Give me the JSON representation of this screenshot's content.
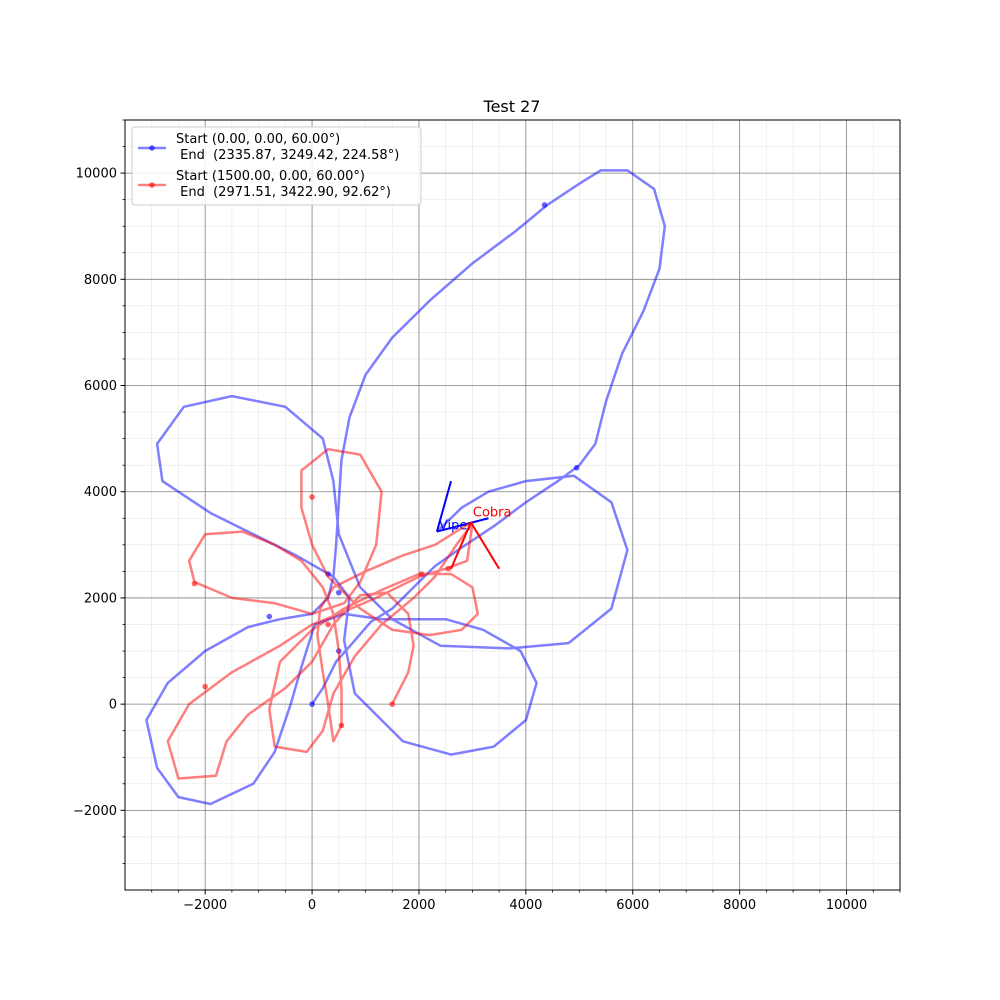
{
  "chart_data": {
    "type": "line",
    "title": "Test 27",
    "xlabel": "",
    "ylabel": "",
    "xlim": [
      -3500,
      11000
    ],
    "ylim": [
      -3500,
      11000
    ],
    "grid": {
      "major": true,
      "minor": true
    },
    "legend_position": "top-left",
    "x_ticks": [
      -2000,
      0,
      2000,
      4000,
      6000,
      8000,
      10000
    ],
    "y_ticks": [
      -2000,
      0,
      2000,
      4000,
      6000,
      8000,
      10000
    ],
    "x_tick_labels": [
      "−2000",
      "0",
      "2000",
      "4000",
      "6000",
      "8000",
      "10000"
    ],
    "y_tick_labels": [
      "−2000",
      "0",
      "2000",
      "4000",
      "6000",
      "8000",
      "10000"
    ],
    "series": [
      {
        "legend_line1": "Start (0.00, 0.00, 60.00°)",
        "legend_line2": " End  (2335.87, 3249.42, 224.58°)",
        "color": "#0000ff",
        "path": [
          [
            0,
            0
          ],
          [
            200,
            300
          ],
          [
            450,
            800
          ],
          [
            800,
            1200
          ],
          [
            1100,
            1550
          ],
          [
            1500,
            1800
          ],
          [
            1900,
            2200
          ],
          [
            2300,
            2600
          ],
          [
            2800,
            2950
          ],
          [
            3400,
            3350
          ],
          [
            4000,
            3800
          ],
          [
            4600,
            4200
          ],
          [
            5000,
            4500
          ],
          [
            5300,
            4900
          ],
          [
            5500,
            5700
          ],
          [
            5800,
            6600
          ],
          [
            6200,
            7400
          ],
          [
            6500,
            8200
          ],
          [
            6600,
            9000
          ],
          [
            6400,
            9700
          ],
          [
            5900,
            10050
          ],
          [
            5400,
            10050
          ],
          [
            5000,
            9800
          ],
          [
            4400,
            9400
          ],
          [
            3800,
            8900
          ],
          [
            3000,
            8300
          ],
          [
            2200,
            7600
          ],
          [
            1500,
            6900
          ],
          [
            1000,
            6200
          ],
          [
            700,
            5400
          ],
          [
            550,
            4600
          ],
          [
            500,
            3800
          ],
          [
            450,
            3000
          ],
          [
            400,
            2400
          ],
          [
            300,
            2000
          ],
          [
            0,
            1700
          ],
          [
            -600,
            1600
          ],
          [
            -1200,
            1450
          ],
          [
            -2000,
            1000
          ],
          [
            -2700,
            400
          ],
          [
            -3100,
            -300
          ],
          [
            -2900,
            -1200
          ],
          [
            -2500,
            -1750
          ],
          [
            -1900,
            -1880
          ],
          [
            -1100,
            -1500
          ],
          [
            -700,
            -900
          ],
          [
            -400,
            0
          ],
          [
            -200,
            700
          ],
          [
            50,
            1500
          ],
          [
            600,
            1700
          ],
          [
            1300,
            1600
          ],
          [
            2100,
            1600
          ],
          [
            2500,
            1600
          ],
          [
            3200,
            1400
          ],
          [
            3900,
            1000
          ],
          [
            4200,
            400
          ],
          [
            4000,
            -300
          ],
          [
            3400,
            -800
          ],
          [
            2600,
            -950
          ],
          [
            1700,
            -700
          ],
          [
            800,
            200
          ],
          [
            600,
            1200
          ],
          [
            700,
            2000
          ],
          [
            400,
            2400
          ],
          [
            -300,
            2800
          ],
          [
            -1100,
            3200
          ],
          [
            -1900,
            3600
          ],
          [
            -2800,
            4200
          ],
          [
            -2900,
            4900
          ],
          [
            -2400,
            5600
          ],
          [
            -1500,
            5800
          ],
          [
            -500,
            5600
          ],
          [
            200,
            5000
          ],
          [
            400,
            4200
          ],
          [
            500,
            3200
          ],
          [
            900,
            2200
          ],
          [
            1500,
            1600
          ],
          [
            2400,
            1100
          ],
          [
            3700,
            1050
          ],
          [
            4800,
            1150
          ],
          [
            5600,
            1800
          ],
          [
            5900,
            2900
          ],
          [
            5600,
            3800
          ],
          [
            4900,
            4300
          ],
          [
            4000,
            4200
          ],
          [
            3300,
            4000
          ],
          [
            2800,
            3700
          ],
          [
            2335.87,
            3249.42
          ]
        ],
        "markers": [
          [
            0,
            0
          ],
          [
            500,
            1000
          ],
          [
            500,
            2100
          ],
          [
            300,
            2450
          ],
          [
            -800,
            1650
          ],
          [
            4350,
            9400
          ],
          [
            4950,
            4450
          ]
        ],
        "heading_label": "Viper",
        "heading_lines": [
          [
            [
              2335.87,
              3249.42
            ],
            [
              2600,
              4200
            ]
          ],
          [
            [
              2335.87,
              3249.42
            ],
            [
              3300,
              3500
            ]
          ]
        ]
      },
      {
        "legend_line1": "Start (1500.00, 0.00, 60.00°)",
        "legend_line2": " End  (2971.51, 3422.90, 92.62°)",
        "color": "#ff0000",
        "path": [
          [
            1500,
            0
          ],
          [
            1800,
            600
          ],
          [
            1900,
            1100
          ],
          [
            1800,
            1700
          ],
          [
            1400,
            2100
          ],
          [
            900,
            2050
          ],
          [
            400,
            1500
          ],
          [
            0,
            800
          ],
          [
            -500,
            300
          ],
          [
            -1200,
            -200
          ],
          [
            -1600,
            -700
          ],
          [
            -1800,
            -1350
          ],
          [
            -2500,
            -1400
          ],
          [
            -2700,
            -700
          ],
          [
            -2300,
            0
          ],
          [
            -1500,
            600
          ],
          [
            -600,
            1100
          ],
          [
            0,
            1500
          ],
          [
            500,
            1700
          ],
          [
            1200,
            2000
          ],
          [
            2000,
            2400
          ],
          [
            2500,
            2550
          ],
          [
            2900,
            2700
          ],
          [
            3000,
            3400
          ],
          [
            2700,
            3000
          ],
          [
            2300,
            2400
          ],
          [
            1900,
            2000
          ],
          [
            1300,
            1500
          ],
          [
            800,
            900
          ],
          [
            400,
            200
          ],
          [
            200,
            -500
          ],
          [
            -100,
            -900
          ],
          [
            -700,
            -800
          ],
          [
            -800,
            -100
          ],
          [
            -600,
            800
          ],
          [
            0,
            1400
          ],
          [
            600,
            1800
          ],
          [
            1300,
            2150
          ],
          [
            2000,
            2450
          ],
          [
            2600,
            2450
          ],
          [
            3000,
            2200
          ],
          [
            3100,
            1700
          ],
          [
            2800,
            1400
          ],
          [
            2200,
            1300
          ],
          [
            1500,
            1400
          ],
          [
            900,
            1800
          ],
          [
            300,
            2400
          ],
          [
            0,
            3000
          ],
          [
            -200,
            3700
          ],
          [
            -200,
            4400
          ],
          [
            300,
            4800
          ],
          [
            900,
            4700
          ],
          [
            1300,
            4000
          ],
          [
            1200,
            3000
          ],
          [
            900,
            2300
          ],
          [
            600,
            1900
          ],
          [
            0,
            1700
          ],
          [
            -700,
            1900
          ],
          [
            -1500,
            2000
          ],
          [
            -2200,
            2300
          ],
          [
            -2300,
            2700
          ],
          [
            -2000,
            3200
          ],
          [
            -1300,
            3250
          ],
          [
            -700,
            3000
          ],
          [
            -200,
            2700
          ],
          [
            200,
            2200
          ],
          [
            400,
            1700
          ],
          [
            500,
            1000
          ],
          [
            550,
            300
          ],
          [
            550,
            -400
          ],
          [
            400,
            -700
          ],
          [
            300,
            0
          ],
          [
            200,
            600
          ],
          [
            100,
            1300
          ],
          [
            150,
            1800
          ],
          [
            400,
            2200
          ],
          [
            1000,
            2500
          ],
          [
            1700,
            2800
          ],
          [
            2300,
            3000
          ],
          [
            2971.51,
            3422.9
          ]
        ],
        "markers": [
          [
            1500,
            0
          ],
          [
            550,
            -400
          ],
          [
            300,
            1500
          ],
          [
            0,
            3900
          ],
          [
            -2200,
            2270
          ],
          [
            -2000,
            330
          ],
          [
            2050,
            2450
          ],
          [
            2550,
            2550
          ]
        ],
        "heading_label": "Cobra",
        "heading_lines": [
          [
            [
              2971.51,
              3422.9
            ],
            [
              2600,
              2550
            ]
          ],
          [
            [
              2971.51,
              3422.9
            ],
            [
              3500,
              2550
            ]
          ]
        ]
      }
    ]
  }
}
